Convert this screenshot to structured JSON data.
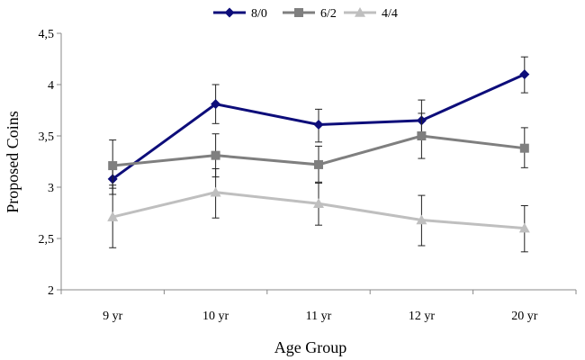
{
  "chart_data": {
    "type": "line",
    "title": "",
    "xlabel": "Age Group",
    "ylabel": "Proposed Coins",
    "categories": [
      "9 yr",
      "10 yr",
      "11 yr",
      "12 yr",
      "20 yr"
    ],
    "ylim": [
      2,
      4.5
    ],
    "yticks": [
      2,
      2.5,
      3,
      3.5,
      4,
      4.5
    ],
    "ytick_labels": [
      "2",
      "2,5",
      "3",
      "3,5",
      "4",
      "4,5"
    ],
    "grid": false,
    "legend_position": "top-center",
    "series": [
      {
        "name": "8/0",
        "marker": "diamond",
        "color": "#0d0d7a",
        "values": [
          3.08,
          3.81,
          3.61,
          3.65,
          4.1
        ],
        "err_low": [
          2.93,
          3.62,
          3.44,
          3.52,
          3.92
        ],
        "err_high": [
          3.21,
          4.0,
          3.76,
          3.85,
          4.27
        ]
      },
      {
        "name": "6/2",
        "marker": "square",
        "color": "#7f7f7f",
        "values": [
          3.21,
          3.31,
          3.22,
          3.5,
          3.38
        ],
        "err_low": [
          2.99,
          3.1,
          3.05,
          3.28,
          3.19
        ],
        "err_high": [
          3.46,
          3.52,
          3.4,
          3.72,
          3.58
        ]
      },
      {
        "name": "4/4",
        "marker": "triangle",
        "color": "#bfbfbf",
        "values": [
          2.71,
          2.95,
          2.84,
          2.68,
          2.6
        ],
        "err_low": [
          2.41,
          2.7,
          2.63,
          2.43,
          2.37
        ],
        "err_high": [
          3.02,
          3.18,
          3.04,
          2.92,
          2.82
        ]
      }
    ]
  }
}
